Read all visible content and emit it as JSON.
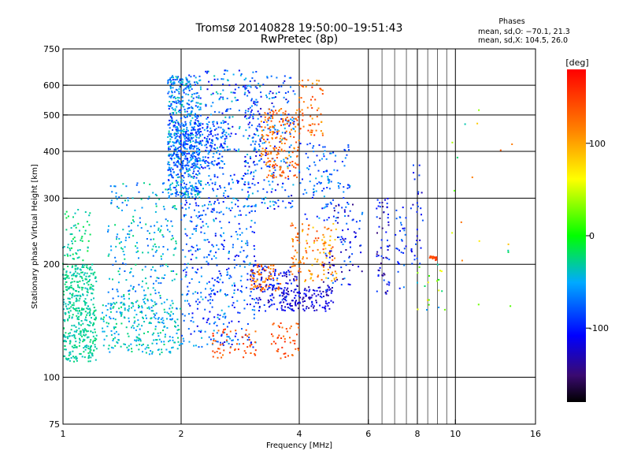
{
  "chart_data": {
    "type": "scatter",
    "title": "Tromsø 20140828 19:50:00–19:51:43",
    "subtitle": "RwPretec (8p)",
    "xlabel": "Frequency [MHz]",
    "ylabel": "Stationary phase Virtual Height [km]",
    "x_scale": "log",
    "y_scale": "log",
    "xlim": [
      1,
      16
    ],
    "ylim": [
      75,
      750
    ],
    "x_ticks": [
      1,
      2,
      4,
      6,
      8,
      10,
      16
    ],
    "x_gridlines": [
      2,
      4,
      6,
      8,
      10
    ],
    "x_minor_gridlines": [
      6.5,
      7,
      7.5,
      8.5,
      9,
      9.5
    ],
    "y_ticks": [
      75,
      100,
      200,
      300,
      400,
      500,
      600,
      750
    ],
    "y_gridlines": [
      100,
      200,
      300,
      400,
      500,
      600
    ],
    "grid": true,
    "stats": {
      "heading": "Phases",
      "line_o": "mean, sd,O: −70.1, 21.3",
      "line_x": "mean, sd,X: 104.5, 26.0"
    },
    "colorbar": {
      "label": "[deg]",
      "range": [
        -180,
        180
      ],
      "ticks": [
        100,
        0,
        -100
      ]
    },
    "points_description_color_scale": "phase in degrees",
    "clusters": [
      {
        "f": [
          1.0,
          1.22
        ],
        "h": [
          110,
          200
        ],
        "phase": [
          -40,
          -20
        ],
        "n": 420
      },
      {
        "f": [
          1.0,
          1.18
        ],
        "h": [
          200,
          280
        ],
        "phase": [
          -40,
          -10
        ],
        "n": 60
      },
      {
        "f": [
          1.25,
          2.0
        ],
        "h": [
          115,
          160
        ],
        "phase": [
          -60,
          -20
        ],
        "n": 220
      },
      {
        "f": [
          1.3,
          1.95
        ],
        "h": [
          140,
          330
        ],
        "phase": [
          -80,
          -20
        ],
        "n": 280
      },
      {
        "f": [
          1.85,
          2.25
        ],
        "h": [
          300,
          640
        ],
        "phase": [
          -100,
          -30
        ],
        "n": 600
      },
      {
        "f": [
          1.9,
          2.6
        ],
        "h": [
          360,
          480
        ],
        "phase": [
          -110,
          -50
        ],
        "n": 260
      },
      {
        "f": [
          2.0,
          3.1
        ],
        "h": [
          120,
          350
        ],
        "phase": [
          -120,
          -40
        ],
        "n": 480
      },
      {
        "f": [
          2.3,
          3.2
        ],
        "h": [
          400,
          660
        ],
        "phase": [
          -120,
          -30
        ],
        "n": 160
      },
      {
        "f": [
          2.4,
          3.1
        ],
        "h": [
          112,
          135
        ],
        "phase": [
          120,
          160
        ],
        "n": 55
      },
      {
        "f": [
          2.9,
          3.9
        ],
        "h": [
          280,
          640
        ],
        "phase": [
          -130,
          -40
        ],
        "n": 240
      },
      {
        "f": [
          3.0,
          4.0
        ],
        "h": [
          150,
          200
        ],
        "phase": [
          -140,
          -80
        ],
        "n": 150
      },
      {
        "f": [
          3.0,
          3.6
        ],
        "h": [
          170,
          200
        ],
        "phase": [
          100,
          150
        ],
        "n": 70
      },
      {
        "f": [
          3.2,
          4.0
        ],
        "h": [
          340,
          520
        ],
        "phase": [
          100,
          150
        ],
        "n": 180
      },
      {
        "f": [
          3.4,
          4.0
        ],
        "h": [
          112,
          140
        ],
        "phase": [
          120,
          160
        ],
        "n": 45
      },
      {
        "f": [
          3.6,
          4.9
        ],
        "h": [
          150,
          175
        ],
        "phase": [
          -140,
          -100
        ],
        "n": 120
      },
      {
        "f": [
          3.8,
          5.0
        ],
        "h": [
          180,
          260
        ],
        "phase": [
          80,
          150
        ],
        "n": 130
      },
      {
        "f": [
          4.0,
          5.4
        ],
        "h": [
          260,
          420
        ],
        "phase": [
          -110,
          -40
        ],
        "n": 110
      },
      {
        "f": [
          4.0,
          4.6
        ],
        "h": [
          440,
          620
        ],
        "phase": [
          100,
          160
        ],
        "n": 60
      },
      {
        "f": [
          4.6,
          5.8
        ],
        "h": [
          170,
          290
        ],
        "phase": [
          -150,
          -60
        ],
        "n": 90
      },
      {
        "f": [
          6.3,
          6.8
        ],
        "h": [
          165,
          300
        ],
        "phase": [
          -150,
          -80
        ],
        "n": 60
      },
      {
        "f": [
          7.0,
          7.5
        ],
        "h": [
          170,
          300
        ],
        "phase": [
          -120,
          -60
        ],
        "n": 30
      },
      {
        "f": [
          7.7,
          8.3
        ],
        "h": [
          200,
          370
        ],
        "phase": [
          -130,
          -80
        ],
        "n": 30
      },
      {
        "f": [
          8.6,
          9.0
        ],
        "h": [
          205,
          210
        ],
        "phase": [
          130,
          160
        ],
        "n": 25
      },
      {
        "f": [
          8.0,
          9.5
        ],
        "h": [
          150,
          200
        ],
        "phase": [
          -60,
          80
        ],
        "n": 20
      },
      {
        "f": [
          9.5,
          14.0
        ],
        "h": [
          150,
          520
        ],
        "phase": [
          -60,
          140
        ],
        "n": 18
      }
    ]
  }
}
